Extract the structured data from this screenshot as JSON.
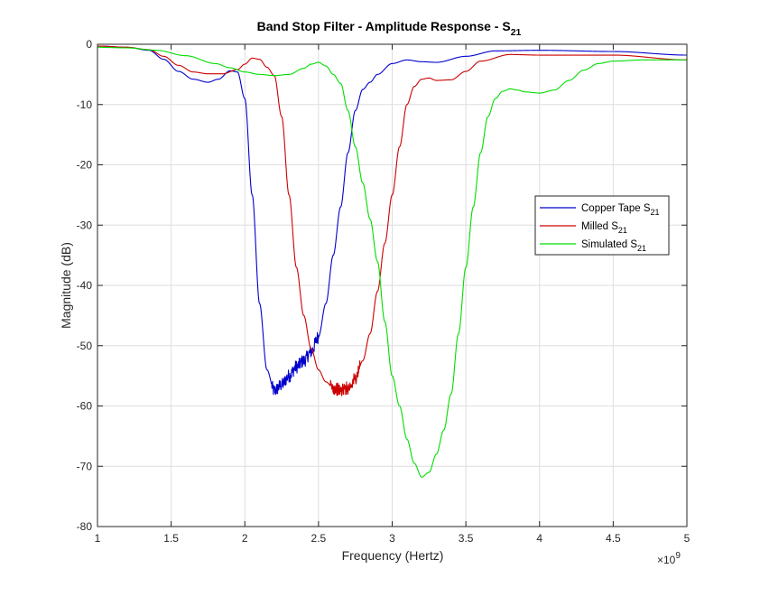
{
  "chart_data": {
    "type": "line",
    "title": "Band Stop Filter - Amplitude Response - S",
    "title_subscript": "21",
    "xlabel": "Frequency (Hertz)",
    "ylabel": "Magnitude (dB)",
    "x_exponent_label": "×10",
    "x_exponent_power": "9",
    "xlim": [
      1,
      5
    ],
    "ylim": [
      -80,
      0
    ],
    "x_ticks": [
      1,
      1.5,
      2,
      2.5,
      3,
      3.5,
      4,
      4.5,
      5
    ],
    "x_tick_labels": [
      "1",
      "1.5",
      "2",
      "2.5",
      "3",
      "3.5",
      "4",
      "4.5",
      "5"
    ],
    "y_ticks": [
      0,
      -10,
      -20,
      -30,
      -40,
      -50,
      -60,
      -70,
      -80
    ],
    "y_tick_labels": [
      "0",
      "-10",
      "-20",
      "-30",
      "-40",
      "-50",
      "-60",
      "-70",
      "-80"
    ],
    "grid": true,
    "legend_position": "right",
    "series": [
      {
        "name": "Copper Tape S",
        "name_subscript": "21",
        "color": "#0000cc",
        "noisy_range": [
          2.18,
          2.5
        ],
        "x": [
          1.0,
          1.2,
          1.35,
          1.45,
          1.55,
          1.65,
          1.75,
          1.82,
          1.9,
          1.95,
          2.0,
          2.05,
          2.1,
          2.15,
          2.2,
          2.25,
          2.3,
          2.35,
          2.4,
          2.45,
          2.5,
          2.55,
          2.6,
          2.65,
          2.7,
          2.75,
          2.8,
          2.85,
          2.9,
          3.0,
          3.1,
          3.2,
          3.3,
          3.5,
          3.7,
          4.0,
          4.5,
          5.0
        ],
        "y": [
          -0.3,
          -0.5,
          -1.0,
          -2.5,
          -4.5,
          -5.8,
          -6.3,
          -5.8,
          -4.4,
          -4.6,
          -9.0,
          -25.0,
          -43.0,
          -54.0,
          -57.5,
          -56.5,
          -55.0,
          -53.5,
          -52.5,
          -51.0,
          -48.5,
          -43.0,
          -35.0,
          -27.0,
          -18.0,
          -11.0,
          -7.5,
          -6.3,
          -5.0,
          -3.2,
          -2.6,
          -2.9,
          -3.0,
          -2.0,
          -1.1,
          -1.0,
          -1.2,
          -1.8
        ]
      },
      {
        "name": "Milled S",
        "name_subscript": "21",
        "color": "#cc0000",
        "noisy_range": [
          2.58,
          2.78
        ],
        "x": [
          1.0,
          1.2,
          1.35,
          1.45,
          1.55,
          1.65,
          1.75,
          1.85,
          1.95,
          2.0,
          2.05,
          2.1,
          2.15,
          2.2,
          2.25,
          2.3,
          2.35,
          2.4,
          2.45,
          2.5,
          2.55,
          2.6,
          2.65,
          2.7,
          2.75,
          2.8,
          2.85,
          2.9,
          2.95,
          3.0,
          3.05,
          3.1,
          3.15,
          3.2,
          3.25,
          3.3,
          3.4,
          3.5,
          3.6,
          3.8,
          4.0,
          4.5,
          5.0
        ],
        "y": [
          -0.3,
          -0.5,
          -0.9,
          -2.0,
          -3.5,
          -4.6,
          -4.9,
          -4.9,
          -4.2,
          -3.3,
          -2.3,
          -2.5,
          -3.8,
          -5.2,
          -12.0,
          -25.0,
          -37.0,
          -45.0,
          -50.5,
          -54.0,
          -56.0,
          -57.0,
          -57.4,
          -57.0,
          -55.5,
          -52.5,
          -48.0,
          -41.0,
          -33.0,
          -25.0,
          -17.0,
          -10.0,
          -7.0,
          -5.8,
          -5.6,
          -6.0,
          -5.9,
          -4.5,
          -2.8,
          -1.7,
          -1.8,
          -1.8,
          -2.6
        ]
      },
      {
        "name": "Simulated S",
        "name_subscript": "21",
        "color": "#00dd00",
        "x": [
          1.0,
          1.2,
          1.4,
          1.6,
          1.8,
          1.9,
          2.0,
          2.1,
          2.2,
          2.3,
          2.4,
          2.45,
          2.5,
          2.55,
          2.6,
          2.65,
          2.7,
          2.75,
          2.8,
          2.85,
          2.9,
          2.95,
          3.0,
          3.05,
          3.1,
          3.15,
          3.2,
          3.25,
          3.3,
          3.35,
          3.4,
          3.45,
          3.5,
          3.55,
          3.6,
          3.65,
          3.7,
          3.75,
          3.8,
          3.85,
          3.9,
          4.0,
          4.1,
          4.2,
          4.3,
          4.4,
          4.5,
          4.7,
          5.0
        ],
        "y": [
          -0.5,
          -0.6,
          -1.0,
          -1.9,
          -3.2,
          -3.9,
          -4.6,
          -5.0,
          -5.2,
          -5.0,
          -4.0,
          -3.3,
          -3.0,
          -3.6,
          -5.0,
          -6.5,
          -11.0,
          -17.0,
          -23.0,
          -29.0,
          -36.0,
          -46.0,
          -55.0,
          -60.0,
          -65.5,
          -69.5,
          -71.8,
          -71.0,
          -68.0,
          -64.0,
          -58.0,
          -48.0,
          -37.0,
          -27.0,
          -18.0,
          -12.0,
          -9.0,
          -7.8,
          -7.4,
          -7.6,
          -7.9,
          -8.1,
          -7.6,
          -6.0,
          -4.3,
          -3.2,
          -2.8,
          -2.6,
          -2.6
        ]
      }
    ]
  }
}
